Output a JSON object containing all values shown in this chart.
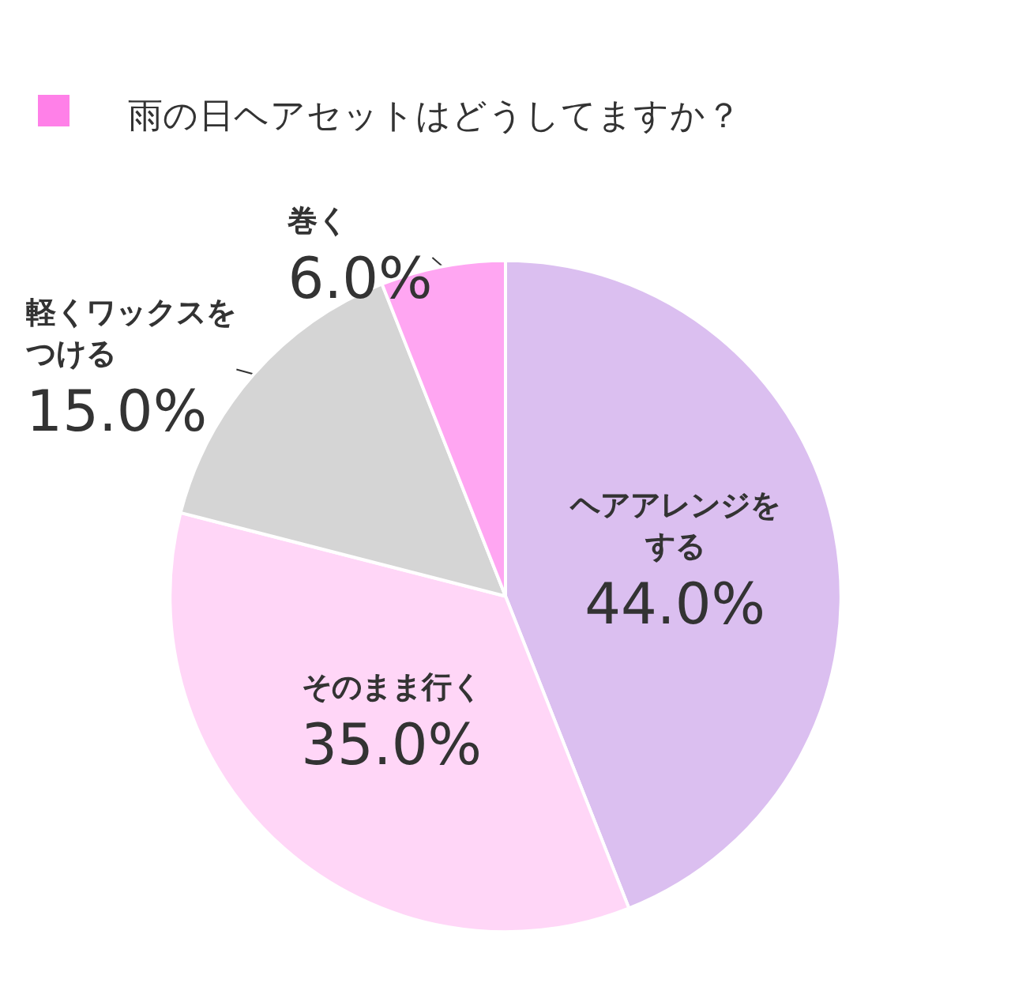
{
  "chart_data": {
    "type": "pie",
    "title": "雨の日ヘアセットはどうしてますか？",
    "categories": [
      "ヘアアレンジをする",
      "そのまま行く",
      "軽くワックスをつける",
      "巻く"
    ],
    "values": [
      44,
      35,
      15,
      6
    ],
    "value_labels": [
      "44.0%",
      "35.0%",
      "15.0%",
      "6.0%"
    ],
    "colors": [
      "#dbbff0",
      "#ffd6f7",
      "#d5d5d5",
      "#ffa6f2"
    ],
    "legend": false
  }
}
